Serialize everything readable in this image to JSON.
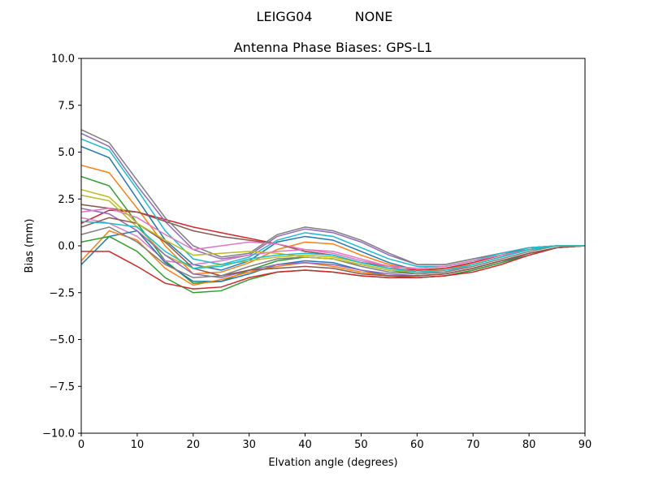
{
  "suptitle": {
    "left": "LEIGG04",
    "right": "NONE"
  },
  "chart_data": {
    "type": "line",
    "title": "Antenna Phase Biases: GPS-L1",
    "xlabel": "Elvation angle (degrees)",
    "ylabel": "Bias (mm)",
    "xlim": [
      0,
      90
    ],
    "ylim": [
      -10,
      10
    ],
    "xticks": [
      "0",
      "10",
      "20",
      "30",
      "40",
      "50",
      "60",
      "70",
      "80",
      "90"
    ],
    "yticks": [
      "−10.0",
      "−7.5",
      "−5.0",
      "−2.5",
      "0.0",
      "2.5",
      "5.0",
      "7.5",
      "10.0"
    ],
    "grid": false,
    "x": [
      0,
      5,
      10,
      15,
      20,
      25,
      30,
      35,
      40,
      45,
      50,
      55,
      60,
      65,
      70,
      75,
      80,
      85,
      90
    ],
    "colors": [
      "#1f77b4",
      "#ff7f0e",
      "#2ca02c",
      "#d62728",
      "#9467bd",
      "#8c564b",
      "#e377c2",
      "#7f7f7f",
      "#bcbd22",
      "#17becf"
    ],
    "series": [
      {
        "values": [
          5.3,
          4.7,
          2.5,
          0.3,
          -1.0,
          -1.3,
          -0.8,
          0.2,
          0.5,
          0.3,
          -0.3,
          -0.9,
          -1.3,
          -1.2,
          -0.9,
          -0.5,
          -0.1,
          0,
          0
        ]
      },
      {
        "values": [
          4.3,
          3.9,
          2.0,
          0.0,
          -1.5,
          -1.4,
          -0.9,
          -0.2,
          0.2,
          0.1,
          -0.5,
          -1.0,
          -1.3,
          -1.3,
          -0.9,
          -0.5,
          -0.2,
          0,
          0
        ]
      },
      {
        "values": [
          3.7,
          3.2,
          1.2,
          -0.8,
          -2.0,
          -1.9,
          -1.3,
          -0.8,
          -0.6,
          -0.7,
          -1.0,
          -1.3,
          -1.5,
          -1.4,
          -1.0,
          -0.6,
          -0.2,
          0,
          0
        ]
      },
      {
        "values": [
          1.2,
          1.9,
          1.8,
          1.4,
          1.0,
          0.7,
          0.4,
          0.1,
          -0.3,
          -0.5,
          -0.9,
          -1.2,
          -1.3,
          -1.2,
          -0.9,
          -0.5,
          -0.2,
          0,
          0
        ]
      },
      {
        "values": [
          6.0,
          5.3,
          3.2,
          1.3,
          -0.2,
          -0.7,
          -0.5,
          0.5,
          0.9,
          0.7,
          0.2,
          -0.5,
          -1.0,
          -1.0,
          -0.7,
          -0.4,
          -0.1,
          0,
          0
        ]
      },
      {
        "values": [
          2.2,
          2.0,
          1.8,
          1.3,
          0.8,
          0.5,
          0.3,
          0.1,
          -0.3,
          -0.5,
          -0.9,
          -1.1,
          -1.2,
          -1.1,
          -0.8,
          -0.5,
          -0.2,
          0,
          0
        ]
      },
      {
        "values": [
          1.5,
          1.2,
          0.5,
          -0.8,
          -1.0,
          -0.8,
          -0.5,
          -0.3,
          -0.2,
          -0.3,
          -0.7,
          -1.1,
          -1.4,
          -1.4,
          -1.0,
          -0.6,
          -0.2,
          0,
          0
        ]
      },
      {
        "values": [
          6.2,
          5.5,
          3.5,
          1.5,
          0.0,
          -0.6,
          -0.4,
          0.6,
          1.0,
          0.8,
          0.3,
          -0.4,
          -1.0,
          -1.0,
          -0.7,
          -0.4,
          -0.1,
          0,
          0
        ]
      },
      {
        "values": [
          2.7,
          2.4,
          1.0,
          -0.5,
          -1.2,
          -1.0,
          -0.8,
          -0.6,
          -0.5,
          -0.6,
          -0.9,
          -1.2,
          -1.4,
          -1.3,
          -1.0,
          -0.6,
          -0.2,
          0,
          0
        ]
      },
      {
        "values": [
          5.7,
          5.1,
          3.0,
          0.8,
          -0.7,
          -1.0,
          -0.6,
          0.3,
          0.7,
          0.5,
          -0.1,
          -0.7,
          -1.1,
          -1.1,
          -0.8,
          -0.4,
          -0.1,
          0,
          0
        ]
      },
      {
        "values": [
          -1.0,
          0.5,
          0.8,
          -0.9,
          -1.9,
          -1.9,
          -1.5,
          -1.0,
          -0.8,
          -0.9,
          -1.3,
          -1.6,
          -1.7,
          -1.6,
          -1.3,
          -0.9,
          -0.4,
          -0.1,
          0
        ]
      },
      {
        "values": [
          -0.8,
          0.8,
          0.3,
          -1.2,
          -2.1,
          -1.8,
          -1.4,
          -1.1,
          -0.9,
          -1.1,
          -1.4,
          -1.6,
          -1.6,
          -1.5,
          -1.2,
          -0.8,
          -0.4,
          -0.1,
          0
        ]
      },
      {
        "values": [
          0.2,
          0.5,
          -0.3,
          -1.7,
          -2.5,
          -2.4,
          -1.8,
          -1.4,
          -1.3,
          -1.4,
          -1.6,
          -1.7,
          -1.7,
          -1.6,
          -1.3,
          -0.9,
          -0.5,
          -0.1,
          0
        ]
      },
      {
        "values": [
          -0.3,
          -0.3,
          -1.1,
          -2.0,
          -2.3,
          -2.2,
          -1.7,
          -1.4,
          -1.3,
          -1.4,
          -1.6,
          -1.7,
          -1.7,
          -1.6,
          -1.4,
          -1.0,
          -0.5,
          -0.1,
          0
        ]
      },
      {
        "values": [
          2.0,
          1.7,
          0.8,
          -0.5,
          -1.5,
          -1.7,
          -1.3,
          -1.0,
          -0.9,
          -1.0,
          -1.3,
          -1.5,
          -1.6,
          -1.5,
          -1.2,
          -0.8,
          -0.4,
          -0.1,
          0
        ]
      },
      {
        "values": [
          1.0,
          1.5,
          1.2,
          0.2,
          -1.2,
          -1.6,
          -1.3,
          -1.2,
          -1.1,
          -1.2,
          -1.5,
          -1.6,
          -1.6,
          -1.5,
          -1.2,
          -0.8,
          -0.4,
          -0.1,
          0
        ]
      },
      {
        "values": [
          1.8,
          2.0,
          1.5,
          0.6,
          -0.2,
          0.0,
          0.2,
          0.1,
          -0.2,
          -0.4,
          -0.8,
          -1.1,
          -1.2,
          -1.1,
          -0.8,
          -0.5,
          -0.2,
          0,
          0
        ]
      },
      {
        "values": [
          0.6,
          1.0,
          0.2,
          -1.0,
          -1.7,
          -1.6,
          -1.1,
          -0.7,
          -0.6,
          -0.7,
          -1.1,
          -1.4,
          -1.5,
          -1.4,
          -1.1,
          -0.7,
          -0.3,
          0,
          0
        ]
      },
      {
        "values": [
          3.0,
          2.6,
          1.2,
          0.3,
          -0.5,
          -0.4,
          -0.3,
          -0.4,
          -0.6,
          -0.7,
          -1.0,
          -1.3,
          -1.4,
          -1.3,
          -1.0,
          -0.6,
          -0.2,
          0,
          0
        ]
      },
      {
        "values": [
          1.3,
          1.2,
          1.0,
          -0.3,
          -1.2,
          -1.1,
          -0.7,
          -0.5,
          -0.4,
          -0.5,
          -0.9,
          -1.2,
          -1.4,
          -1.3,
          -1.0,
          -0.6,
          -0.2,
          0,
          0
        ]
      }
    ]
  }
}
